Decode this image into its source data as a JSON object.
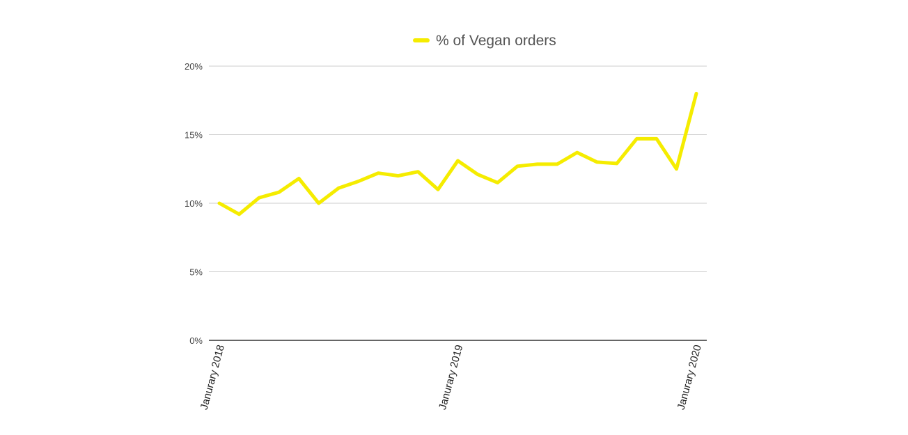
{
  "chart_data": {
    "type": "line",
    "legend": {
      "position": "top",
      "entries": [
        "% of Vegan orders"
      ]
    },
    "series": [
      {
        "name": "% of Vegan orders",
        "color": "#f5ec00",
        "values": [
          10.0,
          9.2,
          10.4,
          10.8,
          11.8,
          10.0,
          11.1,
          11.6,
          12.2,
          12.0,
          12.3,
          11.0,
          13.1,
          12.1,
          11.5,
          12.7,
          12.85,
          12.85,
          13.7,
          13.0,
          12.9,
          14.7,
          14.7,
          12.5,
          18.0
        ]
      }
    ],
    "x_tick_labels": [
      {
        "index": 0,
        "label": "Janurary 2018"
      },
      {
        "index": 12,
        "label": "Janurary 2019"
      },
      {
        "index": 24,
        "label": "Janurary 2020"
      }
    ],
    "y_ticks": [
      0,
      5,
      10,
      15,
      20
    ],
    "y_tick_labels": [
      "0%",
      "5%",
      "10%",
      "15%",
      "20%"
    ],
    "ylim": [
      0,
      20
    ],
    "grid": true,
    "colors": {
      "gridline": "#cccccc",
      "axis": "#333333"
    }
  }
}
